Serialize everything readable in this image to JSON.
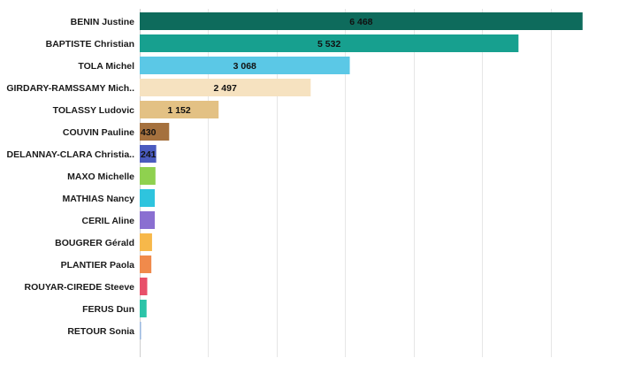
{
  "chart_data": {
    "type": "bar",
    "orientation": "horizontal",
    "categories": [
      "BENIN Justine",
      "BAPTISTE Christian",
      "TOLA Michel",
      "GIRDARY-RAMSSAMY Mich..",
      "TOLASSY Ludovic",
      "COUVIN Pauline",
      "DELANNAY-CLARA Christia..",
      "MAXO Michelle",
      "MATHIAS Nancy",
      "CERIL Aline",
      "BOUGRER Gérald",
      "PLANTIER Paola",
      "ROUYAR-CIREDE Steeve",
      "FERUS Dun",
      "RETOUR Sonia"
    ],
    "values": [
      6468,
      5532,
      3068,
      2497,
      1152,
      430,
      241,
      230,
      220,
      220,
      180,
      170,
      110,
      100,
      20
    ],
    "value_labels": [
      "6 468",
      "5 532",
      "3 068",
      "2 497",
      "1 152",
      "430",
      "241",
      "",
      "",
      "",
      "",
      "",
      "",
      "",
      ""
    ],
    "colors": [
      "#0e6b5c",
      "#17a08f",
      "#5bc8e6",
      "#f6e2c0",
      "#e3c184",
      "#a5713e",
      "#4a5bbf",
      "#8fd14f",
      "#2ec4de",
      "#8a6fd1",
      "#f7b84a",
      "#f08a4b",
      "#e8506a",
      "#2bc4a8",
      "#9ab8e0"
    ],
    "xlim": [
      0,
      7000
    ],
    "grid": true,
    "title": "",
    "xlabel": "",
    "ylabel": ""
  }
}
